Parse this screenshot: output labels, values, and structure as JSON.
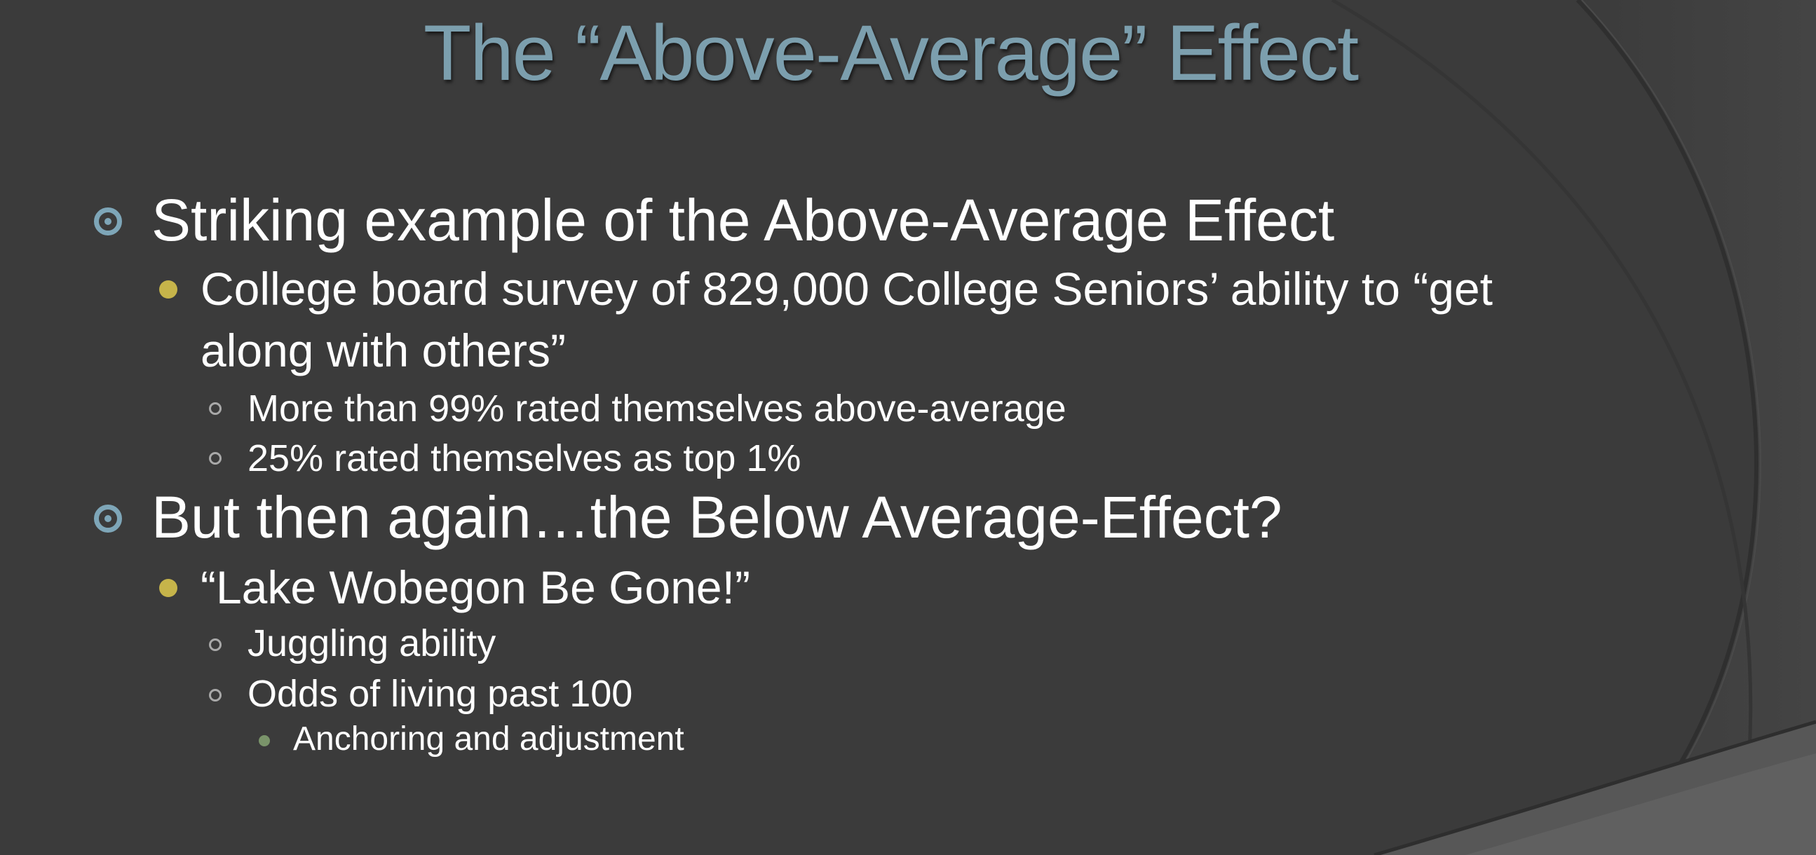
{
  "slide": {
    "title": "The “Above-Average” Effect",
    "bullets": [
      {
        "text": "Striking example of the Above-Average Effect",
        "children": [
          {
            "line1": "College board survey of 829,000 College Seniors’ ability to “get",
            "line2": "along with others”",
            "children": [
              {
                "text": "More than 99% rated themselves above-average"
              },
              {
                "text": "25% rated themselves as top 1%"
              }
            ]
          }
        ]
      },
      {
        "text": "But then again…the Below Average-Effect?",
        "children": [
          {
            "text": "“Lake Wobegon Be Gone!”",
            "children": [
              {
                "text": "Juggling ability"
              },
              {
                "text": "Odds of living past 100",
                "children": [
                  {
                    "text": "Anchoring and adjustment"
                  }
                ]
              }
            ]
          }
        ]
      }
    ]
  },
  "theme": {
    "background": "#3b3b3b",
    "title_color": "#7c9fae",
    "level1_bullet": "#7ea6b8",
    "level2_bullet": "#c6b44a",
    "level3_bullet": "#a9a9a9",
    "level4_bullet": "#7a946a",
    "text_color": "#ffffff"
  }
}
